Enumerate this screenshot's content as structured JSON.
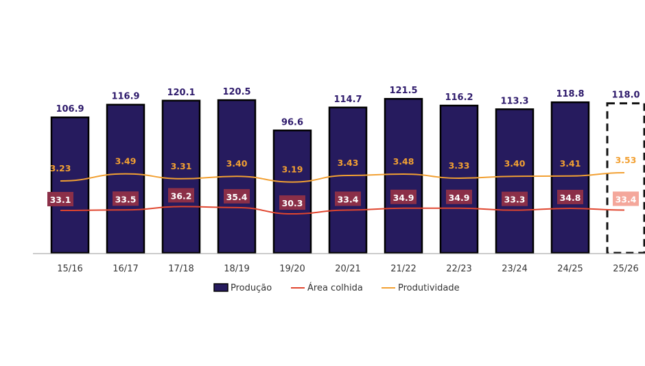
{
  "chart_data": {
    "type": "bar",
    "categories": [
      "15/16",
      "16/17",
      "17/18",
      "18/19",
      "19/20",
      "20/21",
      "21/22",
      "22/23",
      "23/24",
      "24/25",
      "25/26"
    ],
    "series": [
      {
        "name": "Produção",
        "type": "bar",
        "values": [
          106.9,
          116.9,
          120.1,
          120.5,
          96.6,
          114.7,
          121.5,
          116.2,
          113.3,
          118.8,
          118.0
        ],
        "color": "#261b5e"
      },
      {
        "name": "Área colhida",
        "type": "line",
        "values": [
          33.1,
          33.5,
          36.2,
          35.4,
          30.3,
          33.4,
          34.9,
          34.9,
          33.3,
          34.8,
          33.4
        ],
        "color": "#e0452e",
        "label_bg": "#8b2f48",
        "projected_label_bg": "#f4a79b"
      },
      {
        "name": "Produtividade",
        "type": "line",
        "values": [
          3.23,
          3.49,
          3.31,
          3.4,
          3.19,
          3.43,
          3.48,
          3.33,
          3.4,
          3.41,
          3.53
        ],
        "color": "#f2a032"
      }
    ],
    "value_labels": {
      "bars": [
        "106.9",
        "116.9",
        "120.1",
        "120.5",
        "96.6",
        "114.7",
        "121.5",
        "116.2",
        "113.3",
        "118.8",
        "118.0"
      ],
      "area": [
        "33.1",
        "33.5",
        "36.2",
        "35.4",
        "30.3",
        "33.4",
        "34.9",
        "34.9",
        "33.3",
        "34.8",
        "33.4"
      ],
      "productivity": [
        "3.23",
        "3.49",
        "3.31",
        "3.40",
        "3.19",
        "3.43",
        "3.48",
        "3.33",
        "3.40",
        "3.41",
        "3.53"
      ]
    },
    "projected_category": "25/26",
    "ylim": [
      0,
      130
    ],
    "grid": false,
    "legend_placement": "bottom-center",
    "title": "",
    "xlabel": "",
    "ylabel": ""
  },
  "legend": {
    "production": "Produção",
    "area": "Área colhida",
    "productivity": "Produtividade"
  },
  "colors": {
    "bar_fill": "#261b5e",
    "bar_stroke": "#000000",
    "value_text": "#2e1a6b",
    "productivity_text": "#f2a032",
    "axis": "#999999"
  }
}
